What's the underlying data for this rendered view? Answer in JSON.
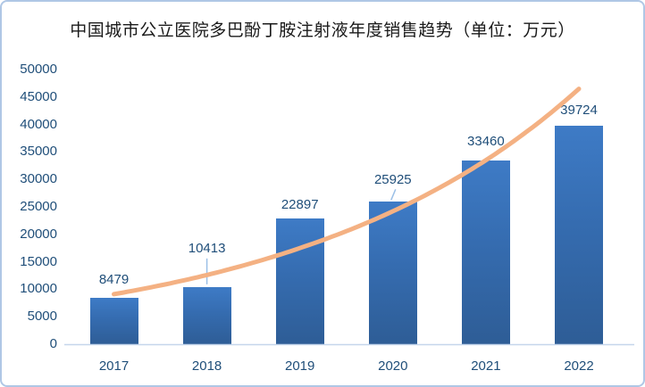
{
  "chart_data": {
    "type": "bar",
    "title": "中国城市公立医院多巴酚丁胺注射液年度销售趋势（单位：万元）",
    "categories": [
      "2017",
      "2018",
      "2019",
      "2020",
      "2021",
      "2022"
    ],
    "values": [
      8479,
      10413,
      22897,
      25925,
      33460,
      39724
    ],
    "data_labels": [
      "8479",
      "10413",
      "22897",
      "25925",
      "33460",
      "39724"
    ],
    "yticks": [
      "0",
      "5000",
      "10000",
      "15000",
      "20000",
      "25000",
      "30000",
      "35000",
      "40000",
      "45000",
      "50000"
    ],
    "ylim": [
      0,
      50000
    ],
    "ytick_step": 5000,
    "xlabel": "",
    "ylabel": "",
    "grid": false,
    "legend": "none",
    "trendline": {
      "shape": "exponential",
      "fit_values": [
        9100,
        12600,
        17500,
        24200,
        33500,
        46500
      ]
    },
    "colors": {
      "bar_top": "#3E7BC6",
      "bar_bottom": "#2E5D96",
      "trendline": "#F4B183",
      "label_text": "#1F4E79",
      "axis_line": "#C5D6EB",
      "leader_line": "#9CC0E7",
      "frame_border": "#AFC7E5",
      "title_text": "#1A1A1A"
    }
  }
}
